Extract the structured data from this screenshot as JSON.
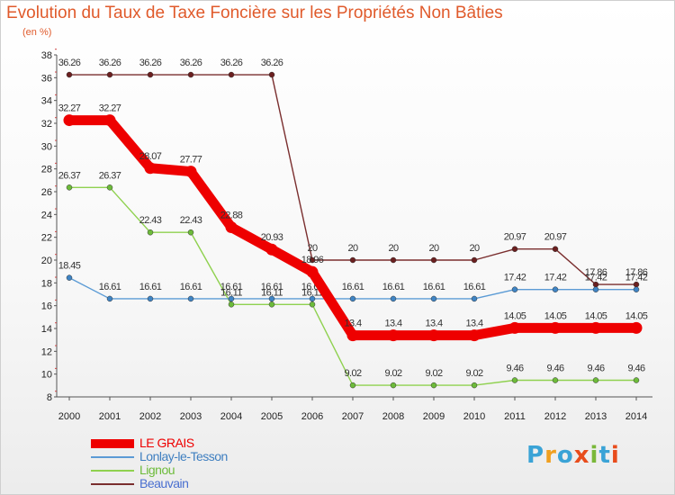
{
  "title": "Evolution du Taux de Taxe Foncière sur les Propriétés Non Bâties",
  "subtitle": "(en %)",
  "logo": {
    "letters": [
      "P",
      "r",
      "o",
      "x",
      "i",
      "t",
      "i"
    ],
    "colors": [
      "#3aa3d6",
      "#f0a020",
      "#3aa3d6",
      "#e84c1c",
      "#7ab83a",
      "#3aa3d6",
      "#e84c1c"
    ]
  },
  "chart_data": {
    "type": "line",
    "title": "Evolution du Taux de Taxe Foncière sur les Propriétés Non Bâties",
    "ylabel": "(en %)",
    "xlabel": "",
    "ylim": [
      8,
      38
    ],
    "yticks": [
      8,
      10,
      12,
      14,
      16,
      18,
      20,
      22,
      24,
      26,
      28,
      30,
      32,
      34,
      36,
      38
    ],
    "grid": false,
    "legend_position": "bottom-left",
    "x": [
      "2000",
      "2001",
      "2002",
      "2003",
      "2004",
      "2005",
      "2006",
      "2007",
      "2008",
      "2009",
      "2010",
      "2011",
      "2012",
      "2013",
      "2014"
    ],
    "series": [
      {
        "name": "Beauvain",
        "color": "#7a2e2e",
        "marker": "#6b1f1f",
        "emphasis": false,
        "values": [
          36.26,
          36.26,
          36.26,
          36.26,
          36.26,
          36.26,
          20,
          20,
          20,
          20,
          20,
          20.97,
          20.97,
          17.86,
          17.86
        ],
        "labels": [
          "36.26",
          "36.26",
          "36.26",
          "36.26",
          "36.26",
          "36.26",
          "20",
          "20",
          "20",
          "20",
          "20",
          "20.97",
          "20.97",
          "17.86",
          "17.86"
        ]
      },
      {
        "name": "Lignou",
        "color": "#8fd14f",
        "marker": "#6dbb3a",
        "emphasis": false,
        "values": [
          26.37,
          26.37,
          22.43,
          22.43,
          16.11,
          16.11,
          16.11,
          9.02,
          9.02,
          9.02,
          9.02,
          9.46,
          9.46,
          9.46,
          9.46
        ],
        "labels": [
          "26.37",
          "26.37",
          "22.43",
          "22.43",
          "16.11",
          "16.11",
          "16.11",
          "9.02",
          "9.02",
          "9.02",
          "9.02",
          "9.46",
          "9.46",
          "9.46",
          "9.46"
        ]
      },
      {
        "name": "Lonlay-le-Tesson",
        "color": "#5b9bd5",
        "marker": "#3f84c4",
        "emphasis": false,
        "values": [
          18.45,
          16.61,
          16.61,
          16.61,
          16.61,
          16.61,
          16.61,
          16.61,
          16.61,
          16.61,
          16.61,
          17.42,
          17.42,
          17.42,
          17.42
        ],
        "labels": [
          "18.45",
          "16.61",
          "16.61",
          "16.61",
          "16.61",
          "16.61",
          "16.61",
          "16.61",
          "16.61",
          "16.61",
          "16.61",
          "17.42",
          "17.42",
          "17.42",
          "17.42"
        ]
      },
      {
        "name": "LE GRAIS",
        "color": "#ee0000",
        "marker": "#ee0000",
        "emphasis": true,
        "values": [
          32.27,
          32.27,
          28.07,
          27.77,
          22.88,
          20.93,
          18.96,
          13.4,
          13.4,
          13.4,
          13.4,
          14.05,
          14.05,
          14.05,
          14.05
        ],
        "labels": [
          "32.27",
          "32.27",
          "28.07",
          "27.77",
          "22.88",
          "20.93",
          "18.96",
          "13.4",
          "13.4",
          "13.4",
          "13.4",
          "14.05",
          "14.05",
          "14.05",
          "14.05"
        ]
      }
    ],
    "legend": [
      {
        "name": "LE GRAIS",
        "color": "#ee0000",
        "text_color": "#ee0000",
        "emphasis": true
      },
      {
        "name": "Lonlay-le-Tesson",
        "color": "#5b9bd5",
        "text_color": "#3f7fc0",
        "emphasis": false
      },
      {
        "name": "Lignou",
        "color": "#8fd14f",
        "text_color": "#6dbb3a",
        "emphasis": false
      },
      {
        "name": "Beauvain",
        "color": "#7a2e2e",
        "text_color": "#4a6fd0",
        "emphasis": false
      }
    ]
  }
}
